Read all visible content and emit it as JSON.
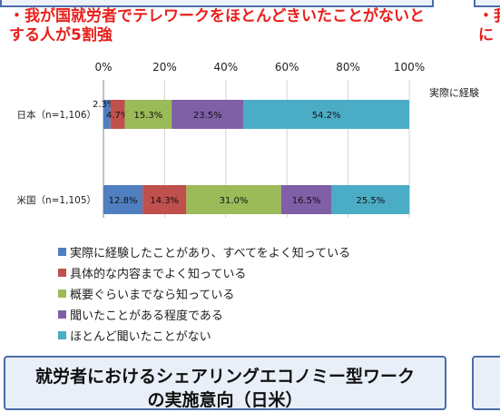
{
  "headline": "・我が国就労者でテレワークをほとんどきいたことがないとする人が5割強",
  "headline_right": "・我\nに",
  "right_note": "実際に経験",
  "bottom_title": "就労者におけるシェアリングエコノミー型ワーク\nの実施意向（日米）",
  "colors": {
    "s1": "#4f7fc1",
    "s2": "#c0504d",
    "s3": "#9bbb59",
    "s4": "#7f5fa6",
    "s5": "#4bacc6"
  },
  "chart_data": {
    "type": "bar",
    "orientation": "horizontal",
    "stacked": true,
    "xlim": [
      0,
      100
    ],
    "ticks": [
      "0%",
      "20%",
      "40%",
      "60%",
      "80%",
      "100%"
    ],
    "categories": [
      "日本（n=1,106）",
      "米国（n=1,105）"
    ],
    "series": [
      {
        "name": "実際に経験したことがあり、すべてをよく知っている",
        "values": [
          2.3,
          12.8
        ],
        "labels": [
          "2.3%",
          "12.8%"
        ],
        "color": "#4f7fc1"
      },
      {
        "name": "具体的な内容までよく知っている",
        "values": [
          4.7,
          14.3
        ],
        "labels": [
          "4.7%",
          "14.3%"
        ],
        "color": "#c0504d"
      },
      {
        "name": "概要ぐらいまでなら知っている",
        "values": [
          15.3,
          31.0
        ],
        "labels": [
          "15.3%",
          "31.0%"
        ],
        "color": "#9bbb59"
      },
      {
        "name": "聞いたことがある程度である",
        "values": [
          23.5,
          16.5
        ],
        "labels": [
          "23.5%",
          "16.5%"
        ],
        "color": "#7f5fa6"
      },
      {
        "name": "ほとんど聞いたことがない",
        "values": [
          54.2,
          25.5
        ],
        "labels": [
          "54.2%",
          "25.5%"
        ],
        "color": "#4bacc6"
      }
    ],
    "grid": true,
    "legend_position": "bottom"
  }
}
